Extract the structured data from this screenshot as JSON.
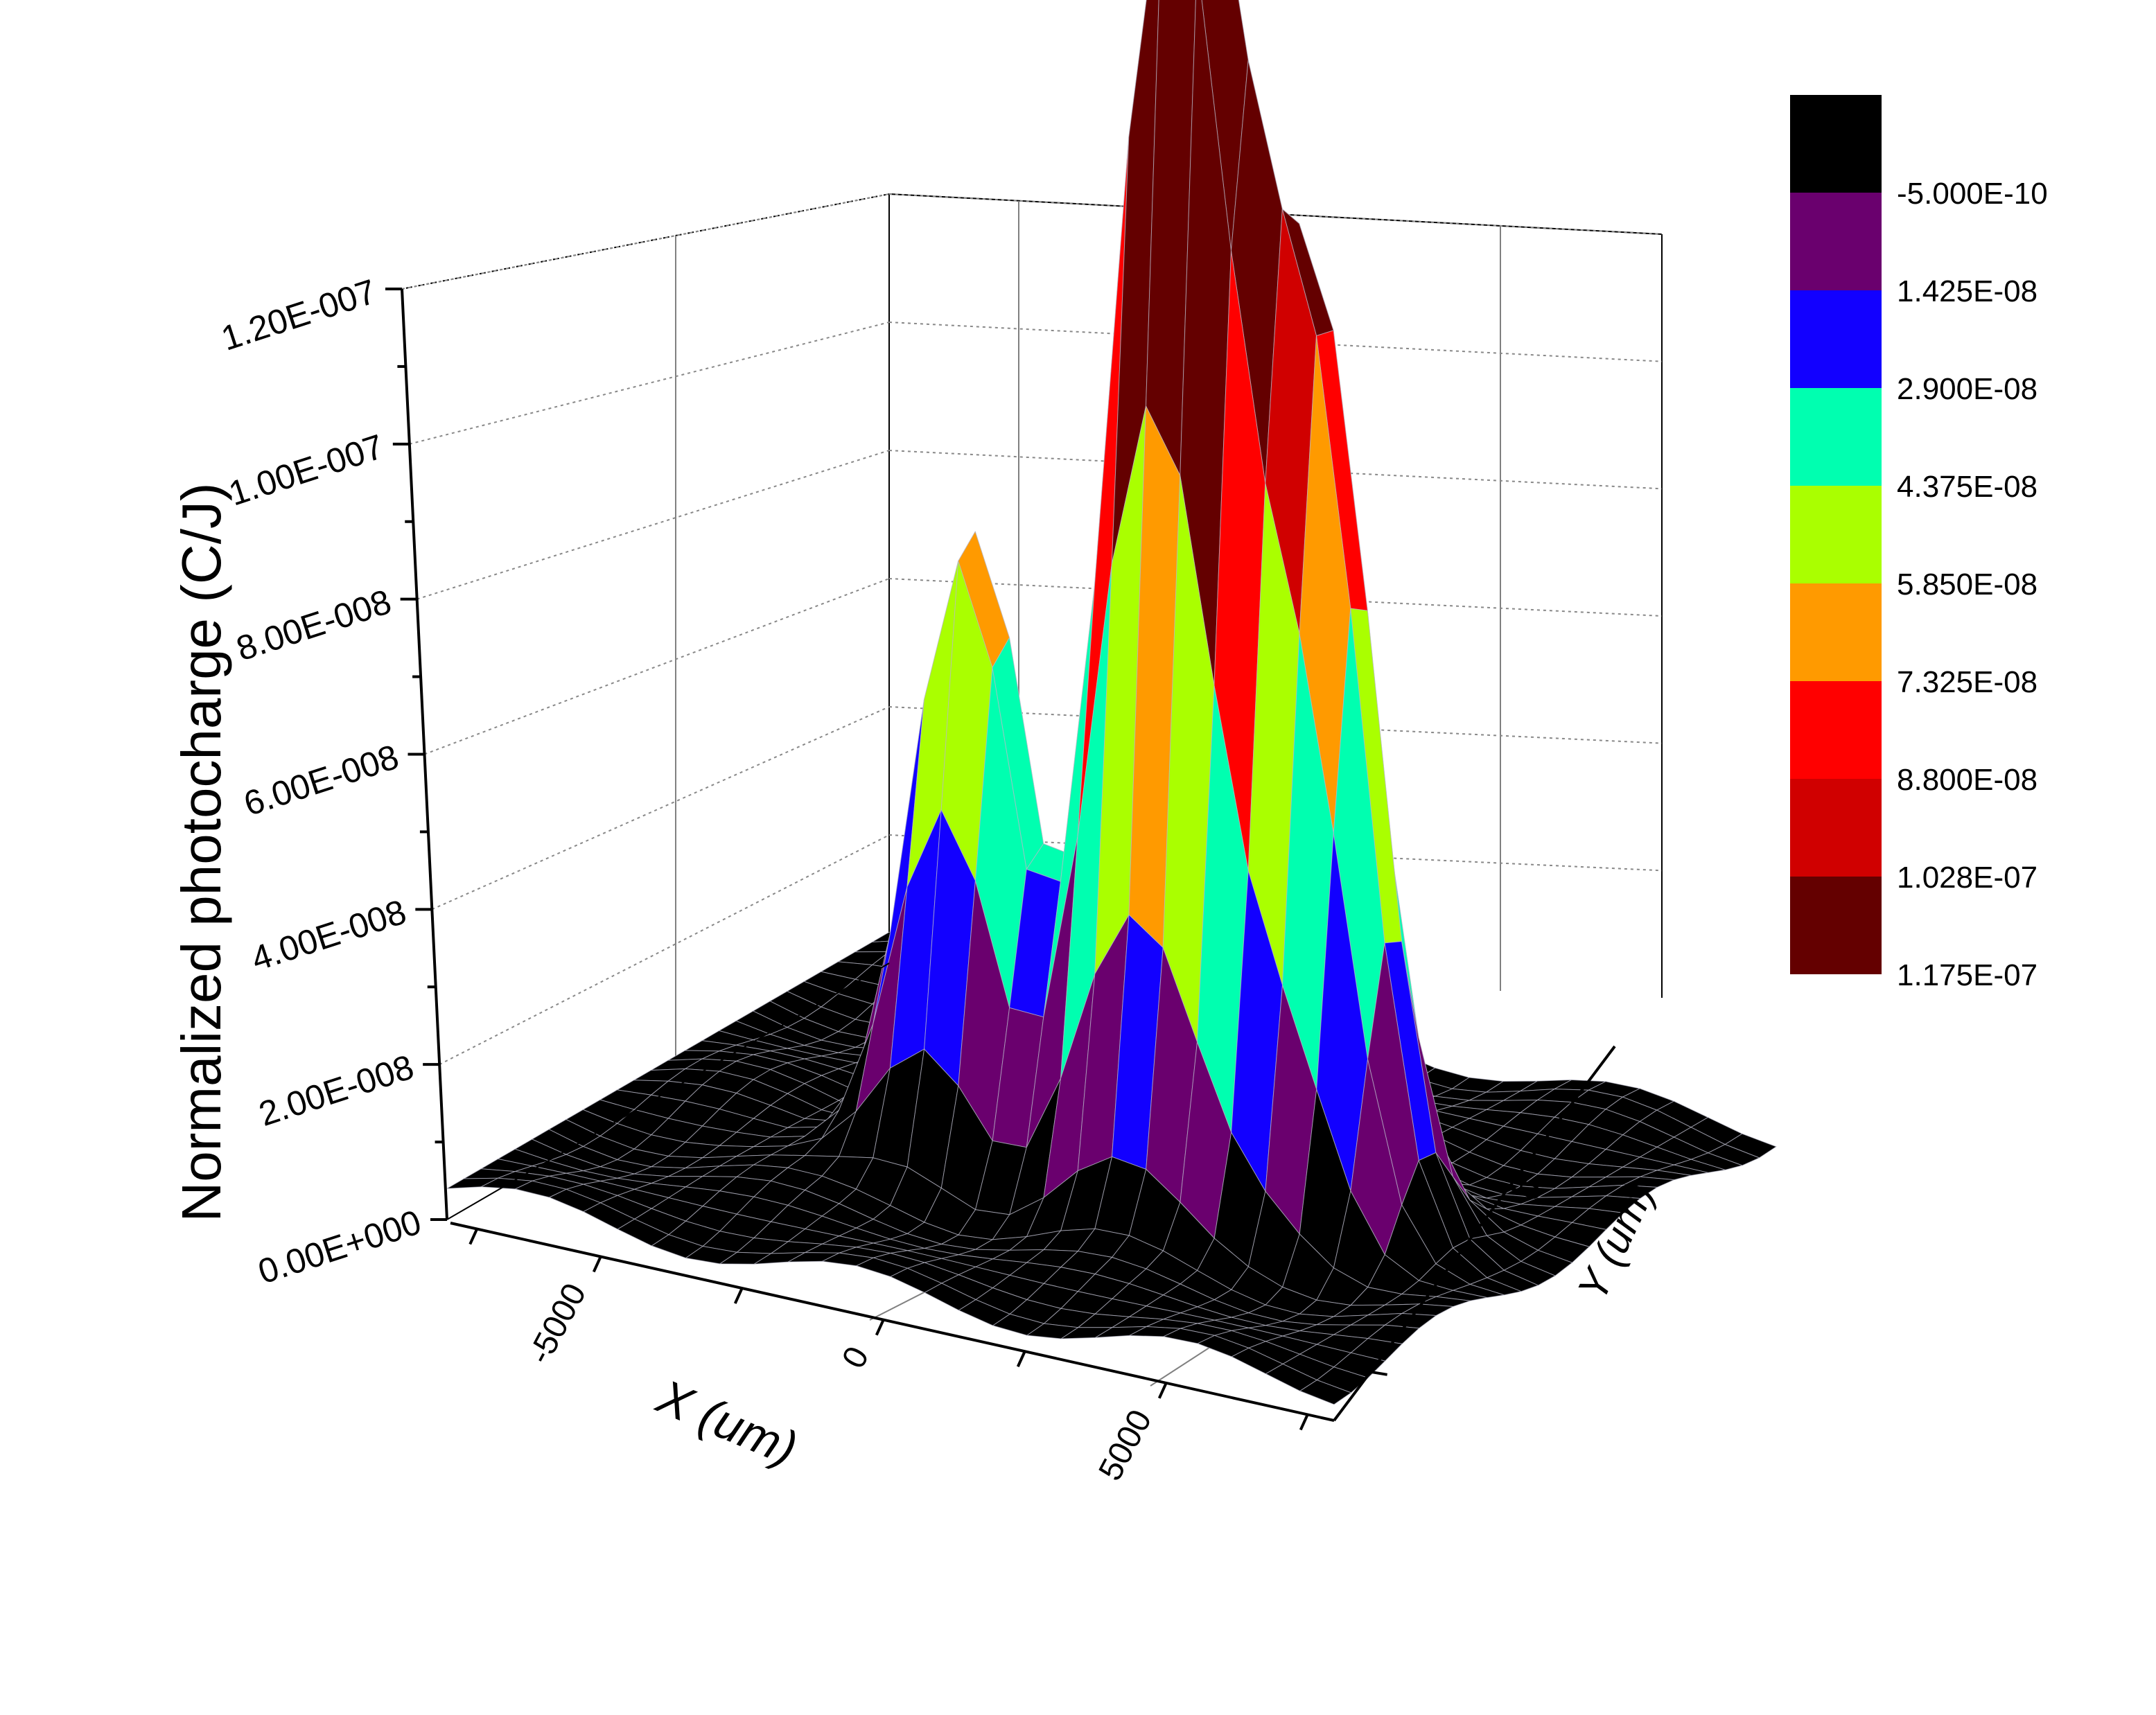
{
  "chart_data": {
    "type": "surface-3d",
    "title": "",
    "xlabel": "X (um)",
    "ylabel": "Y (um)",
    "zlabel": "Normalized photocharge (C/J)",
    "x_ticks": [
      "-5000",
      "0",
      "5000"
    ],
    "y_ticks": [
      "0"
    ],
    "z_ticks": [
      "0.00E+000",
      "2.00E-008",
      "4.00E-008",
      "6.00E-008",
      "8.00E-008",
      "1.00E-007",
      "1.20E-007"
    ],
    "zlim": [
      0,
      1.2e-07
    ],
    "grid": true,
    "legend_placement": "right",
    "colorscale": {
      "levels": [
        "-5.000E-10",
        "1.425E-08",
        "2.900E-08",
        "4.375E-08",
        "5.850E-08",
        "7.325E-08",
        "8.800E-08",
        "1.028E-07",
        "1.175E-07"
      ],
      "colors": [
        "#000000",
        "#6a006e",
        "#1200ff",
        "#00ffb0",
        "#aaff00",
        "#ff9a00",
        "#ff0000",
        "#d00000",
        "#640000"
      ]
    },
    "peaks": [
      {
        "x": -1800,
        "y": 1500,
        "z": 8.4e-08
      },
      {
        "x": 1500,
        "y": 1500,
        "z": 1.16e-07
      },
      {
        "x": 2500,
        "y": 1500,
        "z": 1e-07
      },
      {
        "x": 4300,
        "y": 1000,
        "z": 1e-07
      },
      {
        "x": 3200,
        "y": -500,
        "z": 6.6e-08
      }
    ],
    "baseline_z": 4e-09
  }
}
